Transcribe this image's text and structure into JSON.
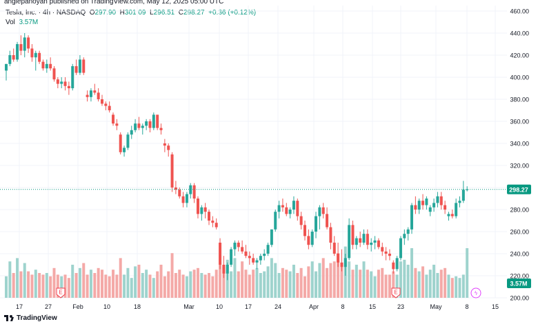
{
  "attribution": "anglepanoyan published on TradingView.com, May 12, 2025 05:00 UTC",
  "legend": {
    "symbol": "Tesla, Inc. · 4h · NASDAQ",
    "open_label": "O",
    "open": "297.90",
    "high_label": "H",
    "high": "301.09",
    "low_label": "L",
    "low": "296.51",
    "close_label": "C",
    "close": "298.27",
    "change": "+0.36 (+0.12%)"
  },
  "volume_legend": {
    "label": "Vol",
    "value": "3.57M"
  },
  "footer": {
    "brand": "TradingView"
  },
  "colors": {
    "up": "#26a69a",
    "down": "#ef5350",
    "vol_up": "#9ed3cd",
    "vol_down": "#f4a9a7",
    "last_price": "#089981",
    "earnings": "#f23645"
  },
  "chart_data": {
    "type": "candlestick",
    "ylim": [
      200,
      465
    ],
    "y_ticks": [
      "460.00",
      "440.00",
      "420.00",
      "400.00",
      "380.00",
      "360.00",
      "340.00",
      "320.00",
      "300.00",
      "280.00",
      "260.00",
      "240.00",
      "220.00",
      "200.00"
    ],
    "x_ticks": [
      "17",
      "27",
      "Feb",
      "10",
      "18",
      "Mar",
      "10",
      "17",
      "24",
      "Apr",
      "8",
      "15",
      "23",
      "May",
      "8",
      "15"
    ],
    "last_price": 298.27,
    "last_price_label": "298.27",
    "volume_label": "3.57M",
    "events": [
      {
        "type": "earnings",
        "label": "E",
        "date": "27"
      },
      {
        "type": "earnings",
        "label": "E",
        "date": "23"
      },
      {
        "type": "dividend_or_split",
        "label": "ϟ",
        "date": "8"
      }
    ],
    "candles": [
      {
        "o": 406,
        "h": 412,
        "l": 397,
        "c": 412
      },
      {
        "o": 412,
        "h": 424,
        "l": 410,
        "c": 420
      },
      {
        "o": 420,
        "h": 426,
        "l": 414,
        "c": 416
      },
      {
        "o": 416,
        "h": 432,
        "l": 414,
        "c": 430
      },
      {
        "o": 430,
        "h": 438,
        "l": 420,
        "c": 424
      },
      {
        "o": 424,
        "h": 440,
        "l": 418,
        "c": 436
      },
      {
        "o": 436,
        "h": 438,
        "l": 422,
        "c": 426
      },
      {
        "o": 426,
        "h": 430,
        "l": 414,
        "c": 418
      },
      {
        "o": 418,
        "h": 424,
        "l": 406,
        "c": 422
      },
      {
        "o": 422,
        "h": 424,
        "l": 412,
        "c": 414
      },
      {
        "o": 414,
        "h": 416,
        "l": 406,
        "c": 408
      },
      {
        "o": 408,
        "h": 416,
        "l": 404,
        "c": 412
      },
      {
        "o": 412,
        "h": 418,
        "l": 406,
        "c": 408
      },
      {
        "o": 408,
        "h": 410,
        "l": 396,
        "c": 398
      },
      {
        "o": 398,
        "h": 400,
        "l": 390,
        "c": 394
      },
      {
        "o": 394,
        "h": 400,
        "l": 390,
        "c": 396
      },
      {
        "o": 396,
        "h": 400,
        "l": 388,
        "c": 392
      },
      {
        "o": 392,
        "h": 396,
        "l": 384,
        "c": 390
      },
      {
        "o": 390,
        "h": 412,
        "l": 388,
        "c": 410
      },
      {
        "o": 410,
        "h": 416,
        "l": 402,
        "c": 404
      },
      {
        "o": 404,
        "h": 420,
        "l": 402,
        "c": 416
      },
      {
        "o": 416,
        "h": 418,
        "l": 402,
        "c": 404
      },
      {
        "o": 384,
        "h": 388,
        "l": 378,
        "c": 382
      },
      {
        "o": 382,
        "h": 390,
        "l": 378,
        "c": 388
      },
      {
        "o": 388,
        "h": 394,
        "l": 384,
        "c": 386
      },
      {
        "o": 386,
        "h": 390,
        "l": 378,
        "c": 380
      },
      {
        "o": 380,
        "h": 384,
        "l": 374,
        "c": 376
      },
      {
        "o": 376,
        "h": 378,
        "l": 370,
        "c": 374
      },
      {
        "o": 374,
        "h": 378,
        "l": 368,
        "c": 370
      },
      {
        "o": 366,
        "h": 368,
        "l": 356,
        "c": 358
      },
      {
        "o": 358,
        "h": 362,
        "l": 352,
        "c": 356
      },
      {
        "o": 348,
        "h": 350,
        "l": 330,
        "c": 332
      },
      {
        "o": 332,
        "h": 338,
        "l": 328,
        "c": 336
      },
      {
        "o": 336,
        "h": 350,
        "l": 334,
        "c": 348
      },
      {
        "o": 348,
        "h": 356,
        "l": 344,
        "c": 352
      },
      {
        "o": 352,
        "h": 362,
        "l": 350,
        "c": 358
      },
      {
        "o": 358,
        "h": 364,
        "l": 352,
        "c": 354
      },
      {
        "o": 354,
        "h": 358,
        "l": 348,
        "c": 356
      },
      {
        "o": 356,
        "h": 362,
        "l": 352,
        "c": 360
      },
      {
        "o": 360,
        "h": 362,
        "l": 350,
        "c": 354
      },
      {
        "o": 354,
        "h": 368,
        "l": 352,
        "c": 366
      },
      {
        "o": 366,
        "h": 366,
        "l": 352,
        "c": 354
      },
      {
        "o": 354,
        "h": 358,
        "l": 348,
        "c": 352
      },
      {
        "o": 340,
        "h": 344,
        "l": 332,
        "c": 338
      },
      {
        "o": 338,
        "h": 340,
        "l": 328,
        "c": 334
      },
      {
        "o": 330,
        "h": 332,
        "l": 296,
        "c": 300
      },
      {
        "o": 300,
        "h": 306,
        "l": 294,
        "c": 298
      },
      {
        "o": 298,
        "h": 300,
        "l": 290,
        "c": 292
      },
      {
        "o": 292,
        "h": 296,
        "l": 282,
        "c": 286
      },
      {
        "o": 286,
        "h": 296,
        "l": 282,
        "c": 294
      },
      {
        "o": 294,
        "h": 304,
        "l": 290,
        "c": 302
      },
      {
        "o": 302,
        "h": 304,
        "l": 286,
        "c": 290
      },
      {
        "o": 290,
        "h": 292,
        "l": 272,
        "c": 276
      },
      {
        "o": 276,
        "h": 284,
        "l": 270,
        "c": 282
      },
      {
        "o": 282,
        "h": 286,
        "l": 272,
        "c": 278
      },
      {
        "o": 278,
        "h": 280,
        "l": 266,
        "c": 270
      },
      {
        "o": 270,
        "h": 274,
        "l": 264,
        "c": 268
      },
      {
        "o": 268,
        "h": 272,
        "l": 262,
        "c": 264
      },
      {
        "o": 250,
        "h": 254,
        "l": 226,
        "c": 230
      },
      {
        "o": 230,
        "h": 238,
        "l": 218,
        "c": 222
      },
      {
        "o": 222,
        "h": 232,
        "l": 216,
        "c": 230
      },
      {
        "o": 230,
        "h": 246,
        "l": 228,
        "c": 244
      },
      {
        "o": 244,
        "h": 252,
        "l": 238,
        "c": 250
      },
      {
        "o": 250,
        "h": 252,
        "l": 242,
        "c": 246
      },
      {
        "o": 246,
        "h": 252,
        "l": 240,
        "c": 242
      },
      {
        "o": 242,
        "h": 248,
        "l": 236,
        "c": 238
      },
      {
        "o": 238,
        "h": 242,
        "l": 230,
        "c": 236
      },
      {
        "o": 236,
        "h": 240,
        "l": 230,
        "c": 232
      },
      {
        "o": 232,
        "h": 236,
        "l": 226,
        "c": 234
      },
      {
        "o": 234,
        "h": 240,
        "l": 230,
        "c": 238
      },
      {
        "o": 238,
        "h": 244,
        "l": 234,
        "c": 240
      },
      {
        "o": 240,
        "h": 250,
        "l": 238,
        "c": 248
      },
      {
        "o": 248,
        "h": 262,
        "l": 246,
        "c": 262
      },
      {
        "o": 262,
        "h": 280,
        "l": 260,
        "c": 278
      },
      {
        "o": 278,
        "h": 288,
        "l": 272,
        "c": 284
      },
      {
        "o": 284,
        "h": 290,
        "l": 278,
        "c": 282
      },
      {
        "o": 282,
        "h": 286,
        "l": 274,
        "c": 276
      },
      {
        "o": 276,
        "h": 282,
        "l": 272,
        "c": 280
      },
      {
        "o": 280,
        "h": 292,
        "l": 276,
        "c": 288
      },
      {
        "o": 288,
        "h": 290,
        "l": 270,
        "c": 274
      },
      {
        "o": 274,
        "h": 278,
        "l": 262,
        "c": 266
      },
      {
        "o": 266,
        "h": 270,
        "l": 252,
        "c": 256
      },
      {
        "o": 256,
        "h": 262,
        "l": 244,
        "c": 248
      },
      {
        "o": 248,
        "h": 262,
        "l": 246,
        "c": 260
      },
      {
        "o": 260,
        "h": 278,
        "l": 254,
        "c": 274
      },
      {
        "o": 274,
        "h": 284,
        "l": 262,
        "c": 282
      },
      {
        "o": 282,
        "h": 286,
        "l": 272,
        "c": 276
      },
      {
        "o": 276,
        "h": 282,
        "l": 262,
        "c": 264
      },
      {
        "o": 264,
        "h": 268,
        "l": 244,
        "c": 250
      },
      {
        "o": 250,
        "h": 256,
        "l": 238,
        "c": 240
      },
      {
        "o": 240,
        "h": 250,
        "l": 228,
        "c": 232
      },
      {
        "o": 232,
        "h": 244,
        "l": 224,
        "c": 228
      },
      {
        "o": 228,
        "h": 240,
        "l": 220,
        "c": 236
      },
      {
        "o": 236,
        "h": 272,
        "l": 234,
        "c": 266
      },
      {
        "o": 266,
        "h": 270,
        "l": 244,
        "c": 248
      },
      {
        "o": 248,
        "h": 256,
        "l": 244,
        "c": 254
      },
      {
        "o": 254,
        "h": 260,
        "l": 246,
        "c": 250
      },
      {
        "o": 250,
        "h": 262,
        "l": 248,
        "c": 258
      },
      {
        "o": 258,
        "h": 262,
        "l": 244,
        "c": 248
      },
      {
        "o": 248,
        "h": 254,
        "l": 242,
        "c": 250
      },
      {
        "o": 250,
        "h": 256,
        "l": 244,
        "c": 252
      },
      {
        "o": 252,
        "h": 254,
        "l": 244,
        "c": 246
      },
      {
        "o": 246,
        "h": 250,
        "l": 238,
        "c": 242
      },
      {
        "o": 242,
        "h": 246,
        "l": 234,
        "c": 240
      },
      {
        "o": 240,
        "h": 244,
        "l": 234,
        "c": 238
      },
      {
        "o": 232,
        "h": 234,
        "l": 222,
        "c": 226
      },
      {
        "o": 226,
        "h": 238,
        "l": 224,
        "c": 236
      },
      {
        "o": 236,
        "h": 256,
        "l": 234,
        "c": 254
      },
      {
        "o": 254,
        "h": 262,
        "l": 248,
        "c": 258
      },
      {
        "o": 258,
        "h": 264,
        "l": 252,
        "c": 262
      },
      {
        "o": 262,
        "h": 286,
        "l": 258,
        "c": 284
      },
      {
        "o": 284,
        "h": 292,
        "l": 276,
        "c": 280
      },
      {
        "o": 280,
        "h": 290,
        "l": 276,
        "c": 288
      },
      {
        "o": 288,
        "h": 294,
        "l": 280,
        "c": 284
      },
      {
        "o": 284,
        "h": 292,
        "l": 280,
        "c": 290
      },
      {
        "o": 278,
        "h": 284,
        "l": 274,
        "c": 282
      },
      {
        "o": 282,
        "h": 290,
        "l": 278,
        "c": 286
      },
      {
        "o": 286,
        "h": 296,
        "l": 282,
        "c": 292
      },
      {
        "o": 292,
        "h": 296,
        "l": 280,
        "c": 284
      },
      {
        "o": 284,
        "h": 288,
        "l": 276,
        "c": 280
      },
      {
        "o": 274,
        "h": 278,
        "l": 270,
        "c": 276
      },
      {
        "o": 276,
        "h": 280,
        "l": 272,
        "c": 274
      },
      {
        "o": 274,
        "h": 290,
        "l": 272,
        "c": 286
      },
      {
        "o": 286,
        "h": 292,
        "l": 282,
        "c": 288
      },
      {
        "o": 288,
        "h": 306,
        "l": 286,
        "c": 298
      },
      {
        "o": 297.9,
        "h": 301.09,
        "l": 296.51,
        "c": 298.27
      }
    ],
    "volumes": [
      13,
      22,
      15,
      24,
      16,
      21,
      16,
      14,
      17,
      15,
      14,
      15,
      13,
      18,
      14,
      13,
      14,
      12,
      20,
      15,
      18,
      21,
      14,
      17,
      15,
      18,
      17,
      14,
      13,
      17,
      14,
      24,
      14,
      18,
      12,
      19,
      20,
      15,
      17,
      14,
      12,
      16,
      20,
      13,
      16,
      27,
      15,
      17,
      14,
      13,
      16,
      17,
      18,
      15,
      14,
      15,
      13,
      17,
      26,
      19,
      23,
      16,
      24,
      16,
      22,
      17,
      14,
      17,
      18,
      15,
      16,
      19,
      24,
      21,
      15,
      18,
      17,
      16,
      20,
      15,
      18,
      13,
      19,
      22,
      16,
      21,
      24,
      18,
      21,
      22,
      27,
      21,
      31,
      22,
      17,
      20,
      17,
      22,
      17,
      16,
      13,
      17,
      18,
      14,
      14,
      16,
      14,
      22,
      23,
      20,
      30,
      18,
      16,
      19,
      14,
      17,
      20,
      15,
      17,
      18,
      14,
      12,
      13,
      12,
      14,
      30,
      11
    ]
  }
}
